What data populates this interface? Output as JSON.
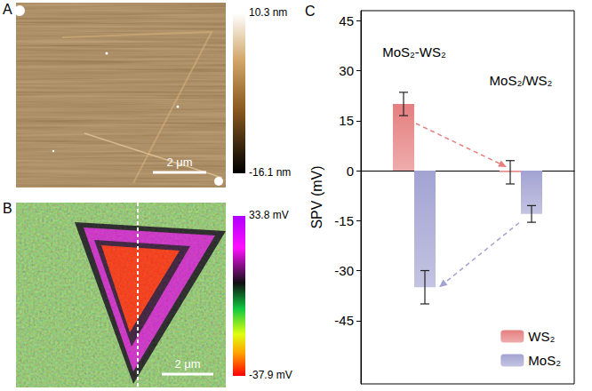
{
  "panels": [
    {
      "letter": "A",
      "scale_bar": "2 μm",
      "colorbar": {
        "range": [
          -16.1,
          10.3
        ],
        "ticks": [
          {
            "value": 10.3,
            "label": "10.3 nm"
          },
          {
            "value": -16.1,
            "label": "-16.1 nm"
          }
        ]
      }
    },
    {
      "letter": "B",
      "scale_bar": "2 μm",
      "colorbar": {
        "range": [
          -37.9,
          33.8
        ],
        "ticks": [
          {
            "value": 33.8,
            "label": "33.8 mV"
          },
          {
            "value": -37.9,
            "label": "-37.9 mV"
          }
        ]
      }
    },
    {
      "letter": "C"
    }
  ],
  "chart_data": {
    "type": "bar",
    "ylabel": "SPV (mV)",
    "categories": [
      "MoS₂-WS₂",
      "MoS₂/WS₂"
    ],
    "series": [
      {
        "name": "WS₂",
        "color": "#e57f7f",
        "values": [
          20,
          -0.5
        ],
        "errors": [
          3.5,
          3.5
        ]
      },
      {
        "name": "MoS₂",
        "color": "#a3a3d3",
        "values": [
          -35,
          -13
        ],
        "errors": [
          5,
          2.5
        ]
      }
    ],
    "ylim": [
      -64,
      48
    ],
    "yticks": [
      -45,
      -30,
      -15,
      0,
      15,
      30,
      45
    ],
    "grid": false,
    "legend": "lower right",
    "tick_labels": "y"
  }
}
